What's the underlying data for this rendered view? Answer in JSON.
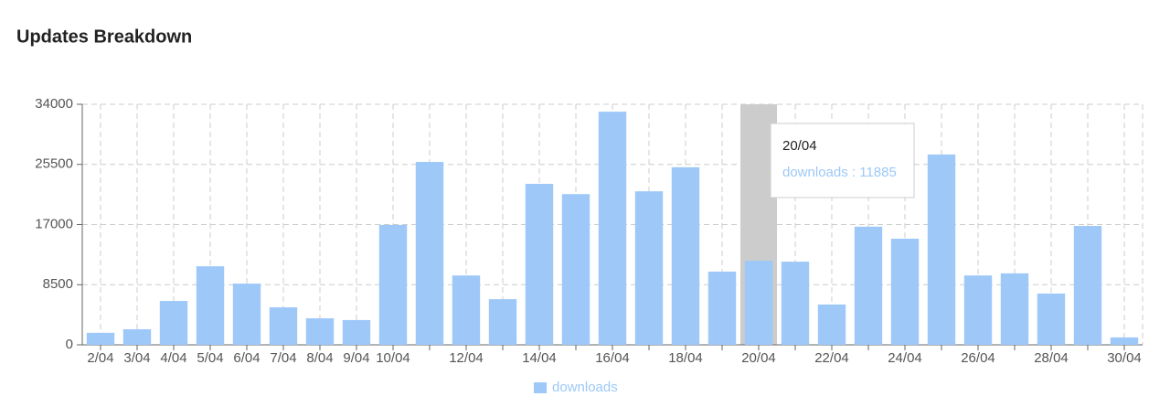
{
  "title": "Updates Breakdown",
  "chart_data": {
    "type": "bar",
    "categories": [
      "2/04",
      "3/04",
      "4/04",
      "5/04",
      "6/04",
      "7/04",
      "8/04",
      "9/04",
      "10/04",
      null,
      "12/04",
      null,
      "14/04",
      null,
      "16/04",
      null,
      "18/04",
      null,
      "20/04",
      null,
      "22/04",
      null,
      "24/04",
      null,
      "26/04",
      null,
      "28/04",
      null,
      "30/04"
    ],
    "series": [
      {
        "name": "downloads",
        "color": "#9dc8f8",
        "values": [
          1700,
          2200,
          6200,
          11100,
          8650,
          5300,
          3750,
          3500,
          16950,
          25850,
          9800,
          6450,
          22750,
          21300,
          32950,
          21700,
          25100,
          10350,
          11885,
          11750,
          5700,
          16700,
          15000,
          26900,
          9800,
          10100,
          7250,
          16800,
          1050
        ]
      }
    ],
    "ylim": [
      0,
      34000
    ],
    "yticks": [
      0,
      8500,
      17000,
      25500,
      34000
    ],
    "grid": true,
    "legend": "bottom",
    "tooltip": {
      "category": "20/04",
      "separator": " : "
    }
  }
}
